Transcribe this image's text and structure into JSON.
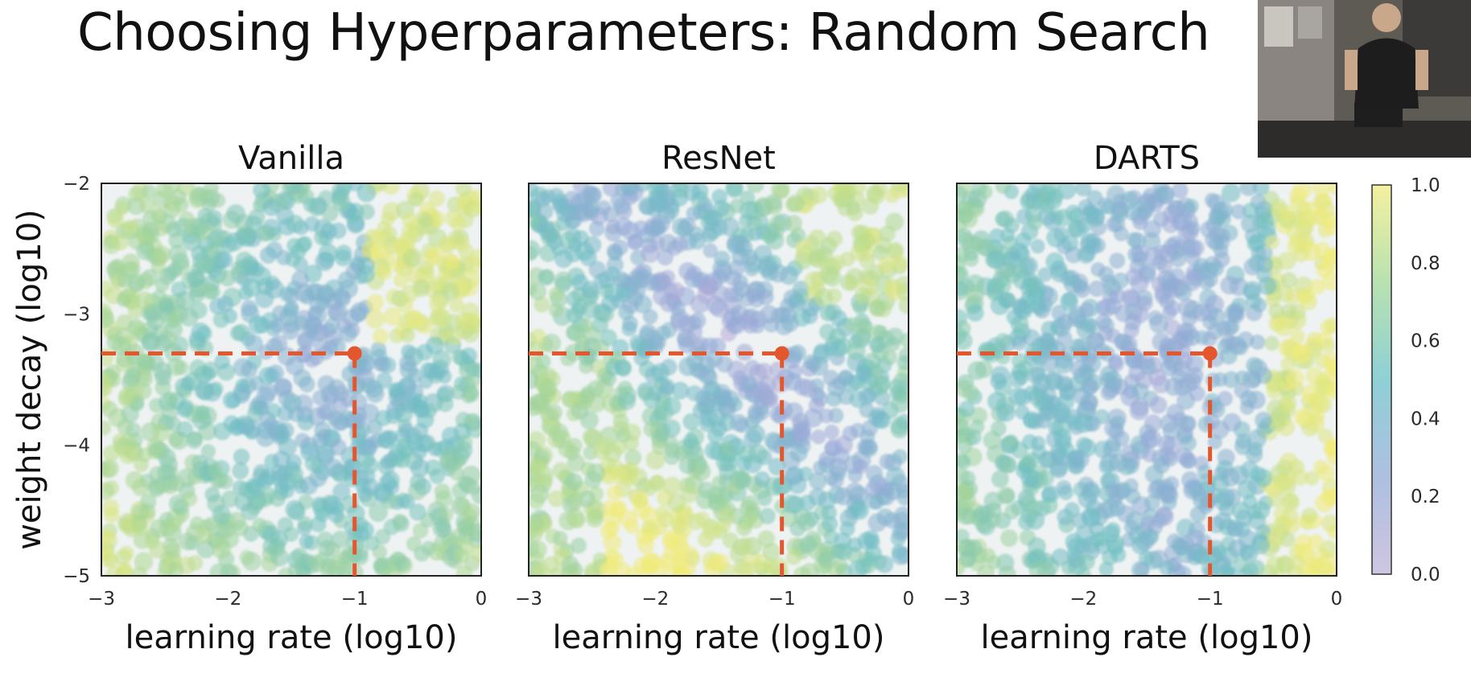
{
  "slide": {
    "title": "Choosing Hyperparameters: Random Search"
  },
  "webcam": {
    "icon": "presenter-video-icon"
  },
  "chart_data": {
    "type": "scatter",
    "xlabel": "learning rate (log10)",
    "ylabel": "weight decay (log10)",
    "xlim": [
      -3,
      0
    ],
    "ylim": [
      -5,
      -2
    ],
    "xticks": [
      "−3",
      "−2",
      "−1",
      "0"
    ],
    "yticks": [
      "−2",
      "−3",
      "−4",
      "−5"
    ],
    "colorbar": {
      "range": [
        0.0,
        1.0
      ],
      "ticks": [
        "1.0",
        "0.8",
        "0.6",
        "0.4",
        "0.2",
        "0.0"
      ],
      "colormap": "viridis",
      "stops": [
        "#440154",
        "#3b528b",
        "#21918c",
        "#5ec962",
        "#fde725"
      ]
    },
    "highlight_color": "#e4572e",
    "panels": [
      {
        "title": "Vanilla",
        "optimum": {
          "x": -1.0,
          "y": -3.3
        }
      },
      {
        "title": "ResNet",
        "optimum": {
          "x": -1.0,
          "y": -3.3
        }
      },
      {
        "title": "DARTS",
        "optimum": {
          "x": -1.0,
          "y": -3.3
        }
      }
    ],
    "grid": false,
    "legend": "colorbar-right"
  }
}
